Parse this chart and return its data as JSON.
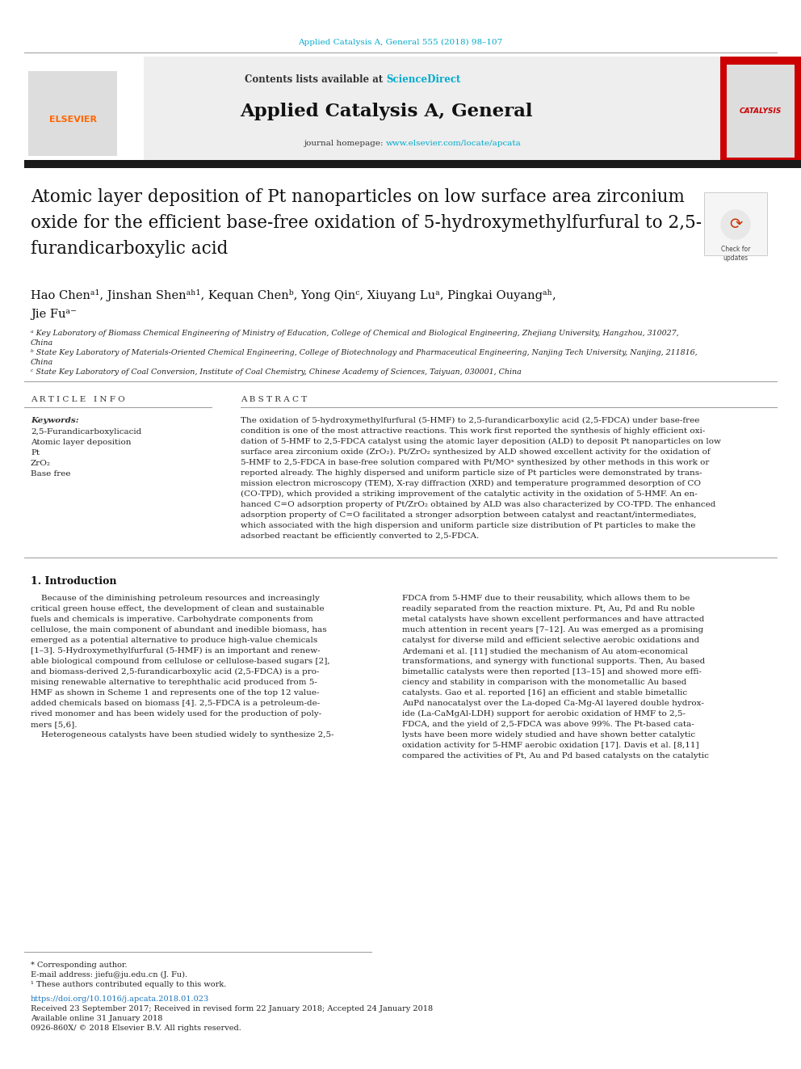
{
  "page_bg": "#ffffff",
  "top_journal_ref": "Applied Catalysis A, General 555 (2018) 98–107",
  "top_journal_ref_color": "#00aacc",
  "header_bg": "#eeeeee",
  "header_contents_text": "Contents lists available at ",
  "header_sciencedirect": "ScienceDirect",
  "header_sciencedirect_color": "#00aacc",
  "journal_title": "Applied Catalysis A, General",
  "journal_homepage_text": "journal homepage: ",
  "journal_homepage_url": "www.elsevier.com/locate/apcata",
  "journal_homepage_url_color": "#00aacc",
  "black_bar_color": "#1a1a1a",
  "article_title_line1": "Atomic layer deposition of Pt nanoparticles on low surface area zirconium",
  "article_title_line2": "oxide for the efficient base-free oxidation of 5-hydroxymethylfurfural to 2,5-",
  "article_title_line3": "furandicarboxylic acid",
  "author_line1": "Hao Chenᵃ¹, Jinshan Shenᵃʰ¹, Kequan Chenᵇ, Yong Qinᶜ, Xiuyang Luᵃ, Pingkai Ouyangᵃʰ,",
  "author_line2": "Jie Fuᵃ⁻",
  "affiliation_a": "ᵃ Key Laboratory of Biomass Chemical Engineering of Ministry of Education, College of Chemical and Biological Engineering, Zhejiang University, Hangzhou, 310027,",
  "affiliation_a2": "China",
  "affiliation_b": "ᵇ State Key Laboratory of Materials-Oriented Chemical Engineering, College of Biotechnology and Pharmaceutical Engineering, Nanjing Tech University, Nanjing, 211816,",
  "affiliation_b2": "China",
  "affiliation_c": "ᶜ State Key Laboratory of Coal Conversion, Institute of Coal Chemistry, Chinese Academy of Sciences, Taiyuan, 030001, China",
  "article_info_header": "A R T I C L E   I N F O",
  "abstract_header": "A B S T R A C T",
  "keywords_label": "Keywords:",
  "keywords": [
    "2,5-Furandicarboxylicacid",
    "Atomic layer deposition",
    "Pt",
    "ZrO₂",
    "Base free"
  ],
  "abstract_lines": [
    "The oxidation of 5-hydroxymethylfurfural (5-HMF) to 2,5-furandicarboxylic acid (2,5-FDCA) under base-free",
    "condition is one of the most attractive reactions. This work first reported the synthesis of highly efficient oxi-",
    "dation of 5-HMF to 2,5-FDCA catalyst using the atomic layer deposition (ALD) to deposit Pt nanoparticles on low",
    "surface area zirconium oxide (ZrO₂). Pt/ZrO₂ synthesized by ALD showed excellent activity for the oxidation of",
    "5-HMF to 2,5-FDCA in base-free solution compared with Pt/MOˣ synthesized by other methods in this work or",
    "reported already. The highly dispersed and uniform particle size of Pt particles were demonstrated by trans-",
    "mission electron microscopy (TEM), X-ray diffraction (XRD) and temperature programmed desorption of CO",
    "(CO-TPD), which provided a striking improvement of the catalytic activity in the oxidation of 5-HMF. An en-",
    "hanced C=O adsorption property of Pt/ZrO₂ obtained by ALD was also characterized by CO-TPD. The enhanced",
    "adsorption property of C=O facilitated a stronger adsorption between catalyst and reactant/intermediates,",
    "which associated with the high dispersion and uniform particle size distribution of Pt particles to make the",
    "adsorbed reactant be efficiently converted to 2,5-FDCA."
  ],
  "intro_header": "1. Introduction",
  "intro_left": [
    "    Because of the diminishing petroleum resources and increasingly",
    "critical green house effect, the development of clean and sustainable",
    "fuels and chemicals is imperative. Carbohydrate components from",
    "cellulose, the main component of abundant and inedible biomass, has",
    "emerged as a potential alternative to produce high-value chemicals",
    "[1–3]. 5-Hydroxymethylfurfural (5-HMF) is an important and renew-",
    "able biological compound from cellulose or cellulose-based sugars [2],",
    "and biomass-derived 2,5-furandicarboxylic acid (2,5-FDCA) is a pro-",
    "mising renewable alternative to terephthalic acid produced from 5-",
    "HMF as shown in Scheme 1 and represents one of the top 12 value-",
    "added chemicals based on biomass [4]. 2,5-FDCA is a petroleum-de-",
    "rived monomer and has been widely used for the production of poly-",
    "mers [5,6].",
    "    Heterogeneous catalysts have been studied widely to synthesize 2,5-"
  ],
  "intro_right": [
    "FDCA from 5-HMF due to their reusability, which allows them to be",
    "readily separated from the reaction mixture. Pt, Au, Pd and Ru noble",
    "metal catalysts have shown excellent performances and have attracted",
    "much attention in recent years [7–12]. Au was emerged as a promising",
    "catalyst for diverse mild and efficient selective aerobic oxidations and",
    "Ardemani et al. [11] studied the mechanism of Au atom-economical",
    "transformations, and synergy with functional supports. Then, Au based",
    "bimetallic catalysts were then reported [13–15] and showed more effi-",
    "ciency and stability in comparison with the monometallic Au based",
    "catalysts. Gao et al. reported [16] an efficient and stable bimetallic",
    "AuPd nanocatalyst over the La-doped Ca-Mg-Al layered double hydrox-",
    "ide (La-CaMgAl-LDH) support for aerobic oxidation of HMF to 2,5-",
    "FDCA, and the yield of 2,5-FDCA was above 99%. The Pt-based cata-",
    "lysts have been more widely studied and have shown better catalytic",
    "oxidation activity for 5-HMF aerobic oxidation [17]. Davis et al. [8,11]",
    "compared the activities of Pt, Au and Pd based catalysts on the catalytic"
  ],
  "footer_corresponding": "* Corresponding author.",
  "footer_email": "E-mail address: jiefu@ju.edu.cn (J. Fu).",
  "footer_footnote": "¹ These authors contributed equally to this work.",
  "footer_doi": "https://doi.org/10.1016/j.apcata.2018.01.023",
  "footer_received": "Received 23 September 2017; Received in revised form 22 January 2018; Accepted 24 January 2018",
  "footer_online": "Available online 31 January 2018",
  "footer_copyright": "0926-860X/ © 2018 Elsevier B.V. All rights reserved."
}
